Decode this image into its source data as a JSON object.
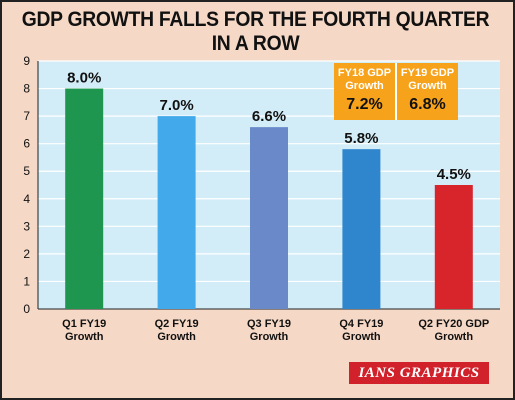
{
  "title": "GDP GROWTH FALLS FOR THE FOURTH QUARTER IN A ROW",
  "credit": "IANS GRAPHICS",
  "infobox": {
    "columns": [
      {
        "line1": "FY18 GDP",
        "line2": "Growth",
        "value": "7.2%"
      },
      {
        "line1": "FY19 GDP",
        "line2": "Growth",
        "value": "6.8%"
      }
    ]
  },
  "chart_data": {
    "type": "bar",
    "title": "GDP GROWTH FALLS FOR THE FOURTH QUARTER IN A ROW",
    "categories": [
      [
        "Q1 FY19",
        "Growth"
      ],
      [
        "Q2 FY19",
        "Growth"
      ],
      [
        "Q3 FY19",
        "Growth"
      ],
      [
        "Q4 FY19",
        "Growth"
      ],
      [
        "Q2 FY20 GDP",
        "Growth"
      ]
    ],
    "values": [
      8.0,
      7.0,
      6.6,
      5.8,
      4.5
    ],
    "value_labels": [
      "8.0%",
      "7.0%",
      "6.6%",
      "5.8%",
      "4.5%"
    ],
    "colors": [
      "#1e9650",
      "#42a9ea",
      "#6a89c9",
      "#2f86cd",
      "#d8252c"
    ],
    "ylim": [
      0,
      9
    ],
    "yticks": [
      0,
      1,
      2,
      3,
      4,
      5,
      6,
      7,
      8,
      9
    ],
    "grid": true,
    "background": "#d3edf8"
  }
}
